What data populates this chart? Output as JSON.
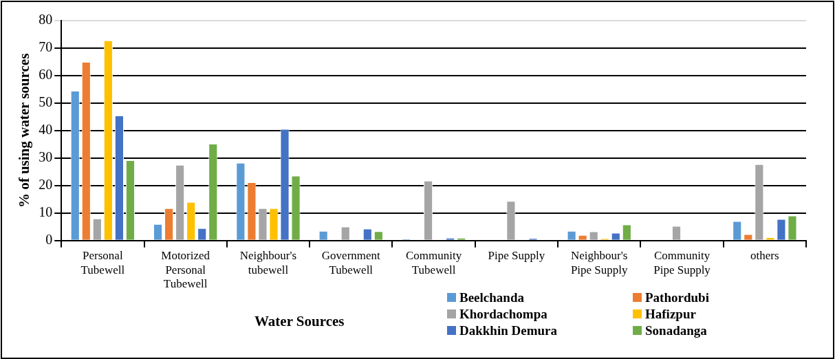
{
  "chart_data": {
    "type": "bar",
    "xlabel": "Water Sources",
    "ylabel": "% of using water sources",
    "categories": [
      "Personal Tubewell",
      "Motorized Personal Tubewell",
      "Neighbour's tubewell",
      "Government Tubewell",
      "Community Tubewell",
      "Pipe Supply",
      "Neighbour's Pipe Supply",
      "Community Pipe Supply",
      "others"
    ],
    "series": [
      {
        "name": "Beelchanda",
        "color": "#5b9bd5",
        "values": [
          54.5,
          6,
          28.3,
          3.5,
          0.6,
          0,
          3.5,
          0,
          7.1
        ]
      },
      {
        "name": "Pathordubi",
        "color": "#ed7d31",
        "values": [
          65,
          11.8,
          21.2,
          0,
          0,
          0,
          2,
          0,
          2.3
        ]
      },
      {
        "name": "Khordachompa",
        "color": "#a5a5a5",
        "values": [
          8,
          27.5,
          11.8,
          5.1,
          21.8,
          14.4,
          3.3,
          5.3,
          27.8
        ]
      },
      {
        "name": "Hafizpur",
        "color": "#ffc000",
        "values": [
          72.8,
          14,
          11.8,
          0,
          0,
          0,
          0.8,
          0,
          1.2
        ]
      },
      {
        "name": "Dakkhin Demura",
        "color": "#4472c4",
        "values": [
          45.5,
          4.5,
          40.6,
          4.3,
          1,
          0.9,
          2.8,
          0,
          7.8
        ]
      },
      {
        "name": "Sonadanga",
        "color": "#70ad47",
        "values": [
          29.2,
          35.2,
          23.6,
          3.4,
          1,
          0,
          5.8,
          0,
          9.1
        ]
      }
    ],
    "ylim": [
      0,
      80
    ],
    "yticks": [
      0,
      10,
      20,
      30,
      40,
      50,
      60,
      70,
      80
    ],
    "grid": "y",
    "legend": "bottom right"
  }
}
